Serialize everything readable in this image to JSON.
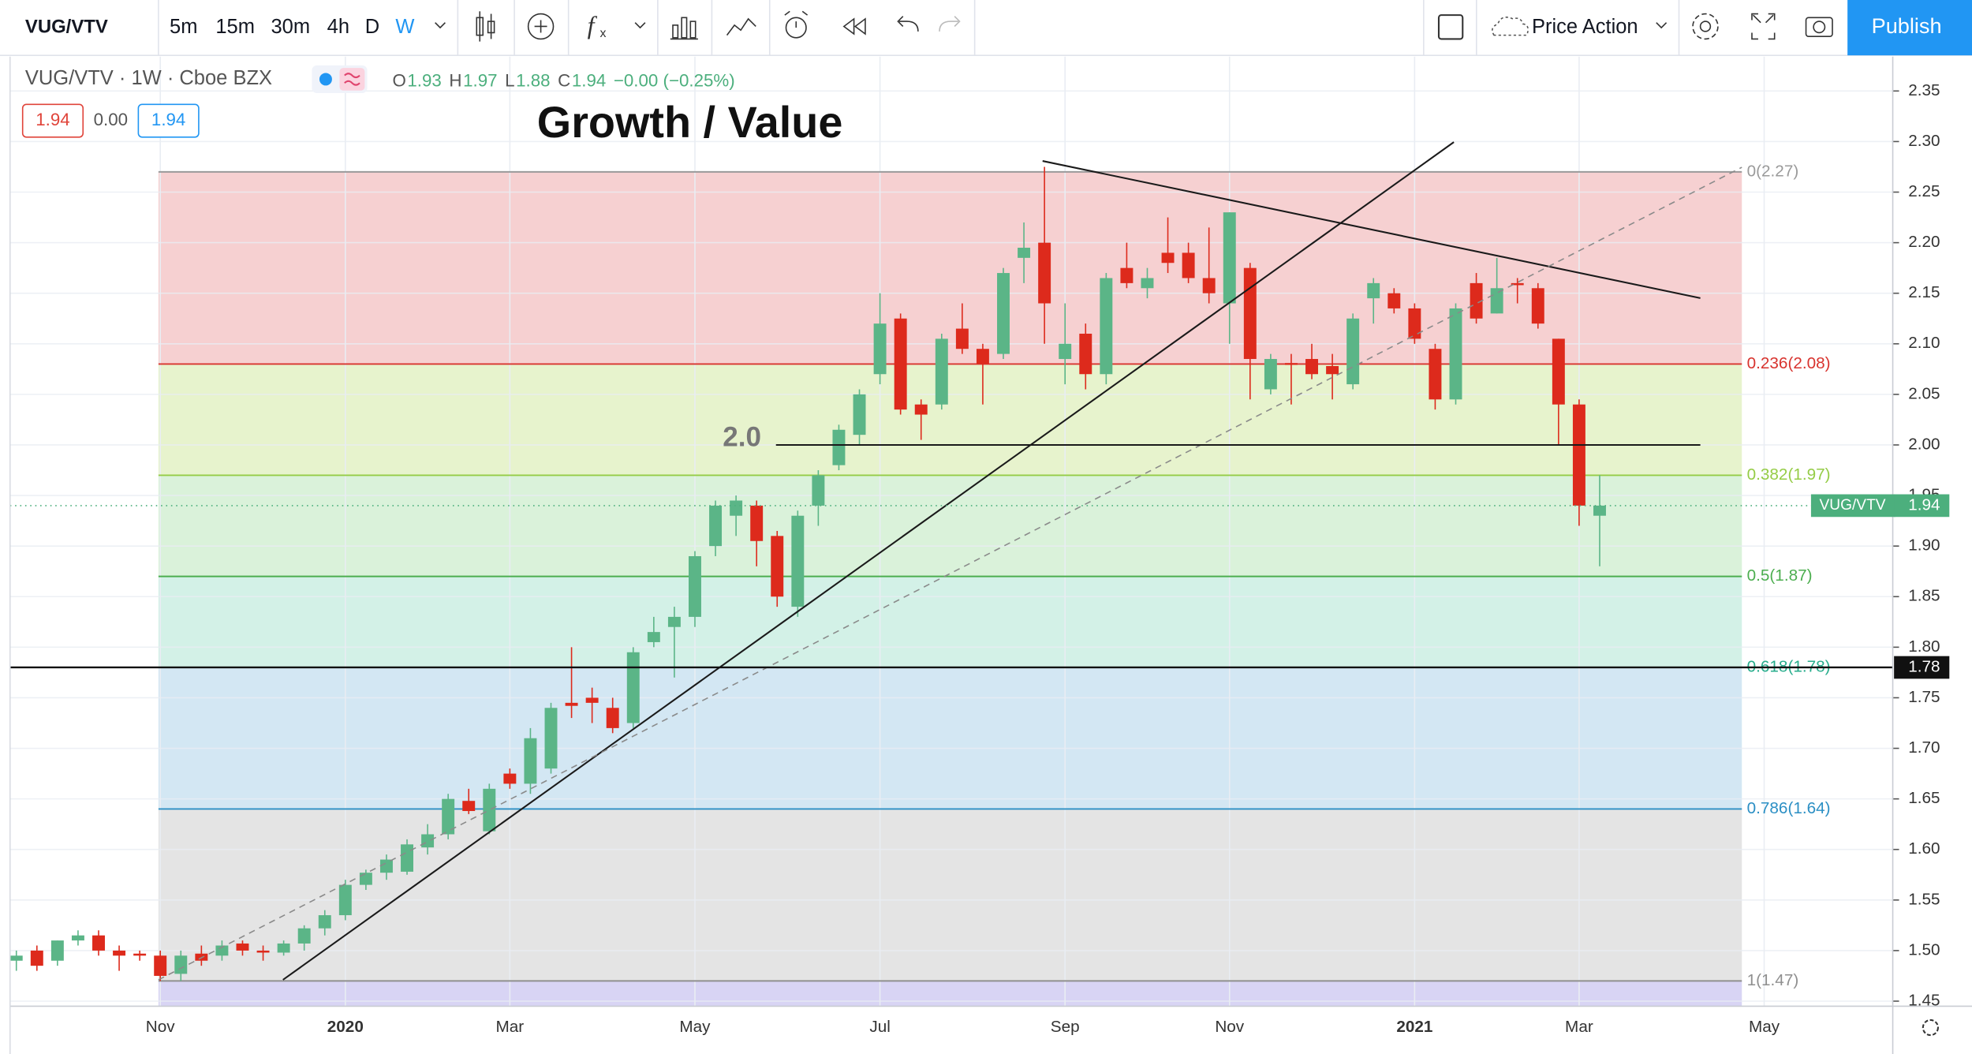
{
  "toolbar": {
    "symbol": "VUG/VTV",
    "intervals": [
      "5m",
      "15m",
      "30m",
      "4h",
      "D",
      "W"
    ],
    "template": "Price Action",
    "publish": "Publish"
  },
  "header": {
    "symbol_line": "VUG/VTV · 1W · Cboe BZX",
    "ohlc": [
      {
        "key": "O",
        "value": "1.93"
      },
      {
        "key": "H",
        "value": "1.97"
      },
      {
        "key": "L",
        "value": "1.88"
      },
      {
        "key": "C",
        "value": "1.94"
      }
    ],
    "change": "−0.00 (−0.25%)",
    "boxes": [
      "1.94",
      "0.00",
      "1.94"
    ]
  },
  "chart_data": {
    "type": "candlestick",
    "title": "Growth / Value",
    "up_color": "#5bb587",
    "down_color": "#dd2a1c",
    "categories": [
      null,
      null,
      null,
      null,
      null,
      null,
      null,
      "Nov",
      null,
      null,
      null,
      null,
      null,
      null,
      null,
      null,
      "2020",
      null,
      null,
      null,
      null,
      null,
      null,
      null,
      "Mar",
      null,
      null,
      null,
      null,
      null,
      null,
      null,
      null,
      "May",
      null,
      null,
      null,
      null,
      null,
      null,
      null,
      null,
      "Jul",
      null,
      null,
      null,
      null,
      null,
      null,
      null,
      null,
      "Sep",
      null,
      null,
      null,
      null,
      null,
      null,
      null,
      "Nov",
      null,
      null,
      null,
      null,
      null,
      null,
      null,
      null,
      "2021",
      null,
      null,
      null,
      null,
      null,
      null,
      null,
      "Mar",
      null,
      null,
      null,
      null,
      null,
      null,
      null,
      null,
      "May",
      null,
      null,
      null,
      null,
      null
    ],
    "open": [
      1.49,
      1.5,
      1.49,
      1.51,
      1.515,
      1.5,
      1.497,
      1.495,
      1.477,
      1.497,
      1.495,
      1.507,
      1.5,
      1.498,
      1.507,
      1.522,
      1.535,
      1.565,
      1.577,
      1.578,
      1.602,
      1.615,
      1.648,
      1.618,
      1.675,
      1.665,
      1.68,
      1.745,
      1.75,
      1.74,
      1.725,
      1.805,
      1.82,
      1.83,
      1.9,
      1.93,
      1.94,
      1.91,
      1.84,
      1.94,
      1.98,
      2.01,
      2.07,
      2.125,
      2.04,
      2.04,
      2.115,
      2.095,
      2.09,
      2.185,
      2.2,
      2.085,
      2.11,
      2.07,
      2.175,
      2.155,
      2.19,
      2.19,
      2.165,
      2.14,
      2.175,
      2.055,
      2.081,
      2.085,
      2.078,
      2.06,
      2.145,
      2.15,
      2.135,
      2.095,
      2.045,
      2.16,
      2.13,
      2.16,
      2.155,
      2.105,
      2.04,
      1.93,
      null,
      null,
      null,
      null,
      null,
      null,
      null,
      null,
      null,
      null,
      null,
      null,
      null
    ],
    "high": [
      1.5,
      1.505,
      1.51,
      1.52,
      1.52,
      1.505,
      1.5,
      1.5,
      1.5,
      1.505,
      1.51,
      1.51,
      1.505,
      1.51,
      1.525,
      1.54,
      1.57,
      1.58,
      1.595,
      1.61,
      1.625,
      1.655,
      1.66,
      1.665,
      1.68,
      1.72,
      1.745,
      1.8,
      1.76,
      1.75,
      1.8,
      1.83,
      1.84,
      1.895,
      1.945,
      1.95,
      1.945,
      1.915,
      1.935,
      1.975,
      2.02,
      2.055,
      2.15,
      2.13,
      2.045,
      2.11,
      2.14,
      2.1,
      2.175,
      2.22,
      2.275,
      2.14,
      2.12,
      2.17,
      2.2,
      2.175,
      2.225,
      2.2,
      2.215,
      2.23,
      2.18,
      2.09,
      2.09,
      2.1,
      2.09,
      2.13,
      2.165,
      2.155,
      2.14,
      2.1,
      2.14,
      2.17,
      2.185,
      2.165,
      2.16,
      2.105,
      2.045,
      1.97,
      null,
      null,
      null,
      null,
      null,
      null,
      null,
      null,
      null,
      null,
      null,
      null,
      null
    ],
    "low": [
      1.48,
      1.48,
      1.485,
      1.505,
      1.495,
      1.48,
      1.49,
      1.47,
      1.47,
      1.485,
      1.49,
      1.495,
      1.49,
      1.495,
      1.5,
      1.515,
      1.53,
      1.56,
      1.57,
      1.575,
      1.595,
      1.61,
      1.635,
      1.615,
      1.66,
      1.655,
      1.675,
      1.73,
      1.725,
      1.715,
      1.72,
      1.8,
      1.77,
      1.82,
      1.89,
      1.91,
      1.88,
      1.84,
      1.83,
      1.92,
      1.975,
      2.0,
      2.06,
      2.03,
      2.005,
      2.035,
      2.09,
      2.04,
      2.085,
      2.16,
      2.1,
      2.06,
      2.055,
      2.06,
      2.155,
      2.145,
      2.17,
      2.16,
      2.14,
      2.1,
      2.045,
      2.05,
      2.04,
      2.065,
      2.045,
      2.055,
      2.12,
      2.13,
      2.1,
      2.035,
      2.04,
      2.12,
      2.13,
      2.14,
      2.115,
      2.0,
      1.92,
      1.88,
      null,
      null,
      null,
      null,
      null,
      null,
      null,
      null,
      null,
      null,
      null,
      null,
      null
    ],
    "close": [
      1.495,
      1.485,
      1.51,
      1.515,
      1.5,
      1.495,
      1.495,
      1.475,
      1.495,
      1.49,
      1.505,
      1.5,
      1.498,
      1.507,
      1.522,
      1.535,
      1.565,
      1.577,
      1.59,
      1.605,
      1.615,
      1.65,
      1.638,
      1.66,
      1.665,
      1.71,
      1.74,
      1.742,
      1.745,
      1.72,
      1.795,
      1.815,
      1.83,
      1.89,
      1.94,
      1.945,
      1.905,
      1.85,
      1.93,
      1.97,
      2.015,
      2.05,
      2.12,
      2.035,
      2.03,
      2.105,
      2.095,
      2.08,
      2.17,
      2.195,
      2.14,
      2.1,
      2.07,
      2.165,
      2.16,
      2.165,
      2.18,
      2.165,
      2.15,
      2.23,
      2.085,
      2.085,
      2.08,
      2.07,
      2.07,
      2.125,
      2.16,
      2.135,
      2.105,
      2.045,
      2.135,
      2.125,
      2.155,
      2.158,
      2.12,
      2.04,
      1.94,
      1.94,
      null,
      null,
      null,
      null,
      null,
      null,
      null,
      null,
      null,
      null,
      null,
      null,
      null
    ],
    "ylim": [
      1.445,
      2.384
    ],
    "yticks": [
      1.45,
      {
        "value": 1.5,
        "label": "1.50"
      },
      1.55,
      {
        "value": 1.6,
        "label": "1.60"
      },
      1.65,
      {
        "value": 1.7,
        "label": "1.70"
      },
      1.75,
      {
        "value": 1.8,
        "label": "1.80"
      },
      1.85,
      {
        "value": 1.9,
        "label": "1.90"
      },
      1.95,
      {
        "value": 2,
        "label": "2.00"
      },
      2.05,
      {
        "value": 2.1,
        "label": "2.10"
      },
      2.15,
      {
        "value": 2.2,
        "label": "2.20"
      },
      2.25,
      {
        "value": 2.3,
        "label": "2.30"
      },
      2.35
    ],
    "grid": true,
    "fib_levels": [
      {
        "label": "0(2.27)",
        "value": 2.27,
        "color": "#9a9a9a",
        "fill": "#f6d0d1"
      },
      {
        "label": "0.236(2.08)",
        "value": 2.08,
        "color": "#d8332e",
        "fill": "#e7f3cd"
      },
      {
        "label": "0.382(1.97)",
        "value": 1.97,
        "color": "#95cc46",
        "fill": "#daf2da"
      },
      {
        "label": "0.5(1.87)",
        "value": 1.87,
        "color": "#4cae4f",
        "fill": "#d3f1e7"
      },
      {
        "label": "0.618(1.78)",
        "value": 1.78,
        "color": "#27ad8c",
        "fill": "#d3e7f3"
      },
      {
        "label": "0.786(1.64)",
        "value": 1.64,
        "color": "#2b8fc4",
        "fill": "#e4e4e4"
      },
      {
        "label": "1(1.47)",
        "value": 1.47,
        "color": "#8f8f8f",
        "fill": "#d8d4f4"
      }
    ],
    "annotations": [
      {
        "value": 2,
        "label": "2.0"
      }
    ],
    "price_line": {
      "value": 1.78
    },
    "last_price": {
      "symbol": "VUG/VTV",
      "value": 1.94,
      "color": "#4caf7d"
    }
  }
}
